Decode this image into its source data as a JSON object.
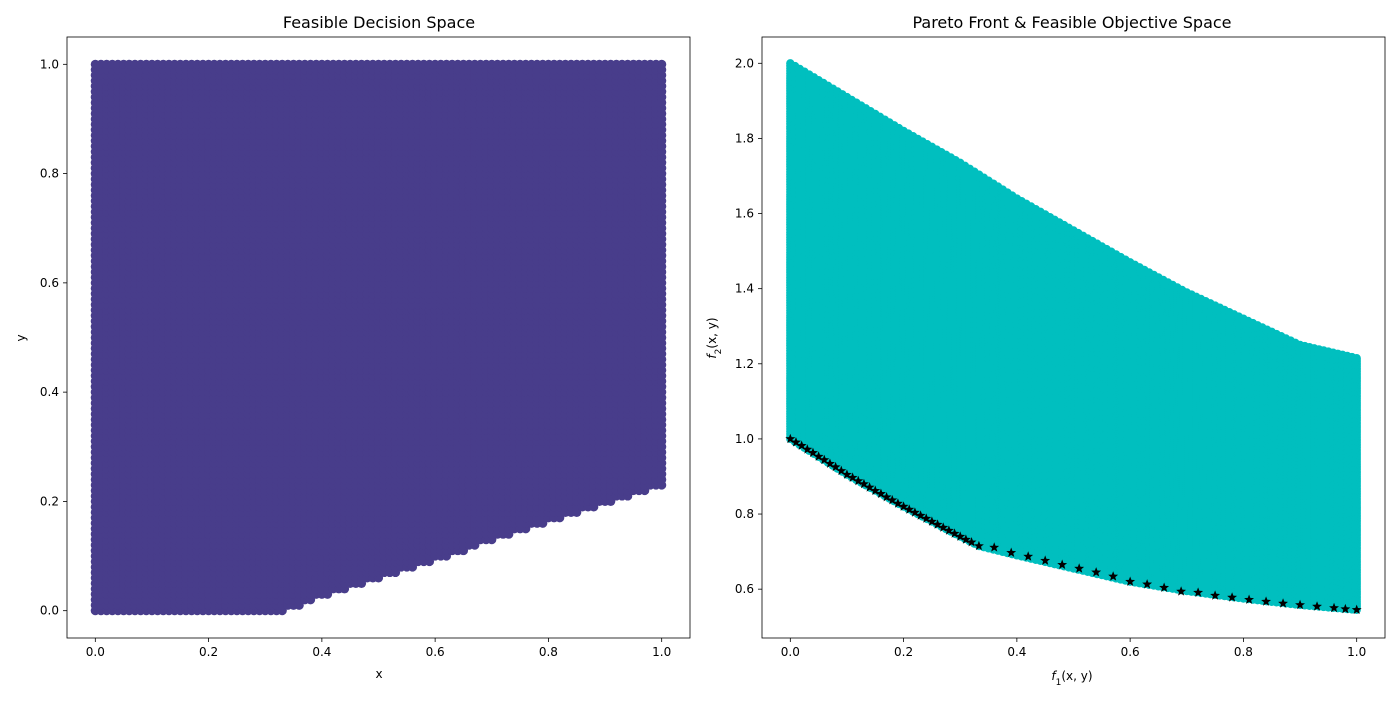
{
  "figure": {
    "background": "#ffffff"
  },
  "chart_data": [
    {
      "type": "scatter",
      "title": "Feasible Decision Space",
      "xlabel": "x",
      "ylabel": "y",
      "xlim": [
        -0.05,
        1.05
      ],
      "ylim": [
        -0.05,
        1.05
      ],
      "xticks": [
        "0.0",
        "0.2",
        "0.4",
        "0.6",
        "0.8",
        "1.0"
      ],
      "yticks": [
        "0.0",
        "0.2",
        "0.4",
        "0.6",
        "0.8",
        "1.0"
      ],
      "grid": false,
      "series": [
        {
          "color": "#483d8b",
          "marker": "circle",
          "region": {
            "x_range": [
              0,
              1
            ],
            "y_upper": 1.0,
            "lower_boundary": [
              [
                0.0,
                0.0
              ],
              [
                0.333,
                0.0
              ],
              [
                0.4,
                0.024
              ],
              [
                0.5,
                0.058
              ],
              [
                0.6,
                0.092
              ],
              [
                0.7,
                0.128
              ],
              [
                0.8,
                0.162
              ],
              [
                0.9,
                0.196
              ],
              [
                1.0,
                0.23
              ]
            ]
          }
        }
      ]
    },
    {
      "type": "scatter",
      "title": "Pareto Front & Feasible Objective Space",
      "xlabel": "f_1(x, y)",
      "ylabel": "f_2(x, y)",
      "xlim": [
        -0.05,
        1.05
      ],
      "ylim": [
        0.47,
        2.07
      ],
      "xticks": [
        "0.0",
        "0.2",
        "0.4",
        "0.6",
        "0.8",
        "1.0"
      ],
      "yticks": [
        "0.6",
        "0.8",
        "1.0",
        "1.2",
        "1.4",
        "1.6",
        "1.8",
        "2.0"
      ],
      "grid": false,
      "series": [
        {
          "color": "#00bfbf",
          "marker": "circle",
          "region": {
            "upper_boundary": [
              [
                0.0,
                2.0
              ],
              [
                0.1,
                1.91
              ],
              [
                0.2,
                1.82
              ],
              [
                0.3,
                1.735
              ],
              [
                0.4,
                1.64
              ],
              [
                0.5,
                1.555
              ],
              [
                0.6,
                1.47
              ],
              [
                0.7,
                1.39
              ],
              [
                0.8,
                1.32
              ],
              [
                0.9,
                1.25
              ],
              [
                1.0,
                1.215
              ]
            ],
            "lower_boundary": [
              [
                0.0,
                1.0
              ],
              [
                0.1,
                0.905
              ],
              [
                0.2,
                0.82
              ],
              [
                0.3,
                0.74
              ],
              [
                0.333,
                0.715
              ],
              [
                0.4,
                0.69
              ],
              [
                0.5,
                0.655
              ],
              [
                0.6,
                0.62
              ],
              [
                0.7,
                0.595
              ],
              [
                0.8,
                0.575
              ],
              [
                0.9,
                0.558
              ],
              [
                1.0,
                0.545
              ]
            ]
          }
        },
        {
          "color": "#000000",
          "marker": "star",
          "points": [
            [
              0.0,
              1.0
            ],
            [
              0.01,
              0.991
            ],
            [
              0.02,
              0.982
            ],
            [
              0.03,
              0.972
            ],
            [
              0.04,
              0.963
            ],
            [
              0.05,
              0.953
            ],
            [
              0.06,
              0.944
            ],
            [
              0.07,
              0.934
            ],
            [
              0.08,
              0.925
            ],
            [
              0.09,
              0.915
            ],
            [
              0.1,
              0.905
            ],
            [
              0.11,
              0.897
            ],
            [
              0.12,
              0.888
            ],
            [
              0.13,
              0.88
            ],
            [
              0.14,
              0.871
            ],
            [
              0.15,
              0.862
            ],
            [
              0.16,
              0.854
            ],
            [
              0.17,
              0.845
            ],
            [
              0.18,
              0.837
            ],
            [
              0.19,
              0.828
            ],
            [
              0.2,
              0.82
            ],
            [
              0.21,
              0.812
            ],
            [
              0.22,
              0.804
            ],
            [
              0.23,
              0.796
            ],
            [
              0.24,
              0.788
            ],
            [
              0.25,
              0.78
            ],
            [
              0.26,
              0.772
            ],
            [
              0.27,
              0.764
            ],
            [
              0.28,
              0.756
            ],
            [
              0.29,
              0.748
            ],
            [
              0.3,
              0.74
            ],
            [
              0.31,
              0.732
            ],
            [
              0.32,
              0.725
            ],
            [
              0.333,
              0.715
            ],
            [
              0.36,
              0.711
            ],
            [
              0.39,
              0.697
            ],
            [
              0.42,
              0.687
            ],
            [
              0.45,
              0.676
            ],
            [
              0.48,
              0.665
            ],
            [
              0.51,
              0.655
            ],
            [
              0.54,
              0.645
            ],
            [
              0.57,
              0.634
            ],
            [
              0.6,
              0.62
            ],
            [
              0.63,
              0.613
            ],
            [
              0.66,
              0.604
            ],
            [
              0.69,
              0.594
            ],
            [
              0.72,
              0.591
            ],
            [
              0.75,
              0.583
            ],
            [
              0.78,
              0.578
            ],
            [
              0.81,
              0.572
            ],
            [
              0.84,
              0.567
            ],
            [
              0.87,
              0.562
            ],
            [
              0.9,
              0.558
            ],
            [
              0.93,
              0.554
            ],
            [
              0.96,
              0.55
            ],
            [
              0.98,
              0.547
            ],
            [
              1.0,
              0.545
            ]
          ]
        }
      ]
    }
  ]
}
